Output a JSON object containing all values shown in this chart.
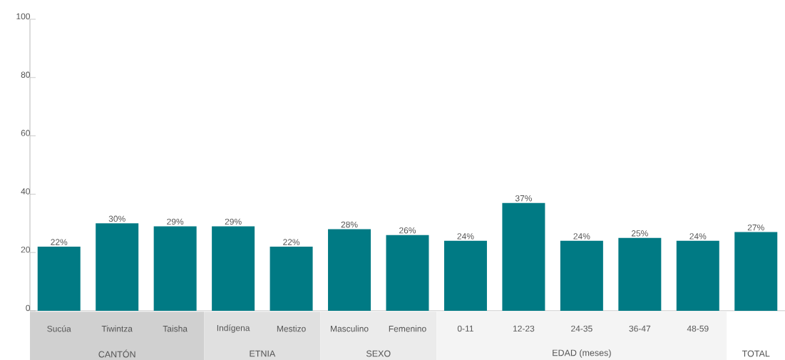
{
  "chart_data": {
    "type": "bar",
    "categories": [
      "Sucúa",
      "Tiwintza",
      "Taisha",
      "Indígena",
      "Mestizo",
      "Masculino",
      "Femenino",
      "0-11",
      "12-23",
      "24-35",
      "36-47",
      "48-59",
      null
    ],
    "values": [
      22,
      30,
      29,
      29,
      22,
      28,
      26,
      24,
      37,
      24,
      25,
      24,
      27
    ],
    "value_labels": [
      "22%",
      "30%",
      "29%",
      "29%",
      "22%",
      "28%",
      "26%",
      "24%",
      "37%",
      "24%",
      "25%",
      "24%",
      "27%"
    ],
    "color": "#007a84",
    "ylim": [
      0,
      100
    ],
    "yticks": [
      0,
      20,
      40,
      60,
      80,
      100
    ],
    "annotations": [
      "CANTÓN",
      "ETNIA",
      "SEXO",
      "EDAD (meses)",
      "TOTAL"
    ]
  }
}
